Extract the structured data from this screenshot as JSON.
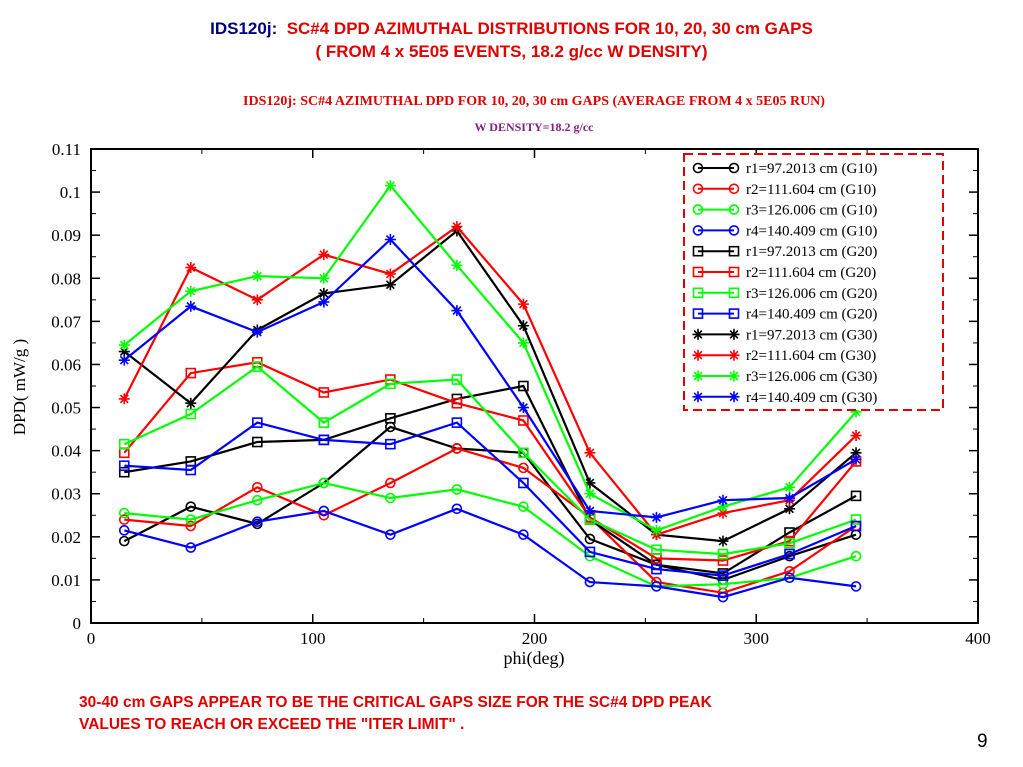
{
  "slide": {
    "title_id": "IDS120j:",
    "title_main": "SC#4   DPD  AZIMUTHAL  DISTRIBUTIONS FOR 10, 20, 30 cm  GAPS",
    "subtitle": "( FROM 4 x 5E05 EVENTS,  18.2 g/cc  W  DENSITY)",
    "note_line1": "30-40 cm GAPS APPEAR TO BE THE CRITICAL  GAPS SIZE FOR THE SC#4  DPD PEAK",
    "note_line2": "VALUES TO REACH OR EXCEED THE  \"ITER LIMIT\"   .",
    "page_number": "9"
  },
  "chart_data": {
    "type": "line",
    "title": "IDS120j:  SC#4 AZIMUTHAL DPD FOR 10, 20, 30 cm GAPS (AVERAGE FROM 4 x 5E05 RUN)",
    "subtitle": "W DENSITY=18.2 g/cc",
    "xlabel": "phi(deg)",
    "ylabel": "DPD( mW/g )",
    "xlim": [
      0,
      400
    ],
    "ylim": [
      0,
      0.11
    ],
    "xticks": [
      "0",
      "100",
      "200",
      "300",
      "400"
    ],
    "yticks": [
      "0",
      "0.01",
      "0.02",
      "0.03",
      "0.04",
      "0.05",
      "0.06",
      "0.07",
      "0.08",
      "0.09",
      "0.1",
      "0.11"
    ],
    "grid": false,
    "legend_position": "top-right",
    "x": [
      15,
      45,
      75,
      105,
      135,
      165,
      195,
      225,
      255,
      285,
      315,
      345
    ],
    "series": [
      {
        "name": "r1=97.2013 cm (G10)",
        "color": "#000000",
        "marker": "circle",
        "values": [
          0.019,
          0.027,
          0.023,
          0.0325,
          0.0455,
          0.0405,
          0.0395,
          0.0195,
          0.0135,
          0.01,
          0.0155,
          0.0205
        ]
      },
      {
        "name": "r2=111.604 cm (G10)",
        "color": "#ff0000",
        "marker": "circle",
        "values": [
          0.024,
          0.0225,
          0.0315,
          0.025,
          0.0325,
          0.0405,
          0.036,
          0.0245,
          0.0095,
          0.007,
          0.012,
          0.0225
        ]
      },
      {
        "name": "r3=126.006 cm (G10)",
        "color": "#00ff00",
        "marker": "circle",
        "values": [
          0.0255,
          0.024,
          0.0285,
          0.0325,
          0.029,
          0.031,
          0.027,
          0.0155,
          0.0085,
          0.009,
          0.0105,
          0.0155
        ]
      },
      {
        "name": "r4=140.409 cm (G10)",
        "color": "#0000ff",
        "marker": "circle",
        "values": [
          0.0215,
          0.0175,
          0.0235,
          0.026,
          0.0205,
          0.0265,
          0.0205,
          0.0095,
          0.0085,
          0.006,
          0.0105,
          0.0085
        ]
      },
      {
        "name": "r1=97.2013 cm (G20)",
        "color": "#000000",
        "marker": "square",
        "values": [
          0.035,
          0.0375,
          0.042,
          0.0425,
          0.0475,
          0.052,
          0.055,
          0.024,
          0.0135,
          0.0115,
          0.021,
          0.0295
        ]
      },
      {
        "name": "r2=111.604 cm (G20)",
        "color": "#ff0000",
        "marker": "square",
        "values": [
          0.0395,
          0.058,
          0.0605,
          0.0535,
          0.0565,
          0.051,
          0.047,
          0.0245,
          0.015,
          0.0145,
          0.019,
          0.0375
        ]
      },
      {
        "name": "r3=126.006 cm (G20)",
        "color": "#00ff00",
        "marker": "square",
        "values": [
          0.0415,
          0.0485,
          0.0595,
          0.0465,
          0.0555,
          0.0565,
          0.0395,
          0.024,
          0.017,
          0.016,
          0.0185,
          0.024
        ]
      },
      {
        "name": "r4=140.409 cm (G20)",
        "color": "#0000ff",
        "marker": "square",
        "values": [
          0.0365,
          0.0355,
          0.0465,
          0.0425,
          0.0415,
          0.0465,
          0.0325,
          0.0165,
          0.0125,
          0.011,
          0.016,
          0.0225
        ]
      },
      {
        "name": "r1=97.2013 cm (G30)",
        "color": "#000000",
        "marker": "star",
        "values": [
          0.063,
          0.051,
          0.068,
          0.0765,
          0.0785,
          0.091,
          0.069,
          0.0325,
          0.0205,
          0.019,
          0.0265,
          0.0395
        ]
      },
      {
        "name": "r2=111.604 cm (G30)",
        "color": "#ff0000",
        "marker": "star",
        "values": [
          0.052,
          0.0825,
          0.075,
          0.0855,
          0.081,
          0.092,
          0.074,
          0.0395,
          0.0205,
          0.0255,
          0.0285,
          0.0435
        ]
      },
      {
        "name": "r3=126.006 cm (G30)",
        "color": "#00ff00",
        "marker": "star",
        "values": [
          0.0645,
          0.077,
          0.0805,
          0.08,
          0.1015,
          0.083,
          0.065,
          0.03,
          0.0215,
          0.027,
          0.0315,
          0.049
        ]
      },
      {
        "name": "r4=140.409 cm (G30)",
        "color": "#0000ff",
        "marker": "star",
        "values": [
          0.061,
          0.0735,
          0.0675,
          0.0745,
          0.089,
          0.0725,
          0.05,
          0.026,
          0.0245,
          0.0285,
          0.029,
          0.038
        ]
      }
    ]
  }
}
